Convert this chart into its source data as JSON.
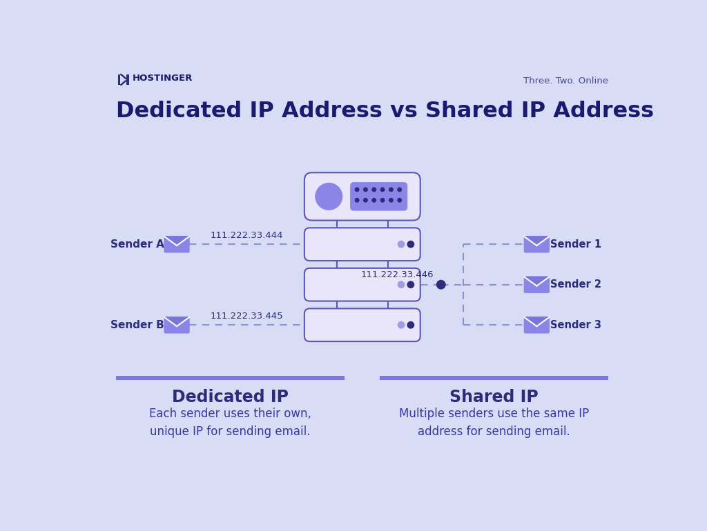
{
  "bg_color": "#d8dcf5",
  "title": "Dedicated IP Address vs Shared IP Address",
  "title_color": "#1a1a6e",
  "title_fontsize": 23,
  "brand_name": "HOSTINGER",
  "brand_color": "#1a1a6e",
  "tagline": "Three. Two. Online",
  "tagline_color": "#4a4a8a",
  "purple_light": "#8b85e8",
  "purple_mid": "#7b75d8",
  "purple_dark": "#2d2b7a",
  "panel_face": "#e8e6f8",
  "border_color": "#5a56b8",
  "dashed_color": "#9090cc",
  "dot_dark": "#2d2b7a",
  "dot_light": "#a09de0",
  "sender_a_label": "Sender A",
  "sender_b_label": "Sender B",
  "ip_a": "111.222.33.444",
  "ip_b": "111.222.33.445",
  "ip_shared": "111.222.33.446",
  "shared_senders": [
    "Sender 1",
    "Sender 2",
    "Sender 3"
  ],
  "dedicated_title": "Dedicated IP",
  "dedicated_desc": "Each sender uses their own,\nunique IP for sending email.",
  "shared_title": "Shared IP",
  "shared_desc": "Multiple senders use the same IP\naddress for sending email.",
  "section_title_color": "#2d2b7a",
  "section_desc_color": "#3a37a0",
  "bar_color": "#7b77e0",
  "section_title_fontsize": 17,
  "section_desc_fontsize": 12
}
